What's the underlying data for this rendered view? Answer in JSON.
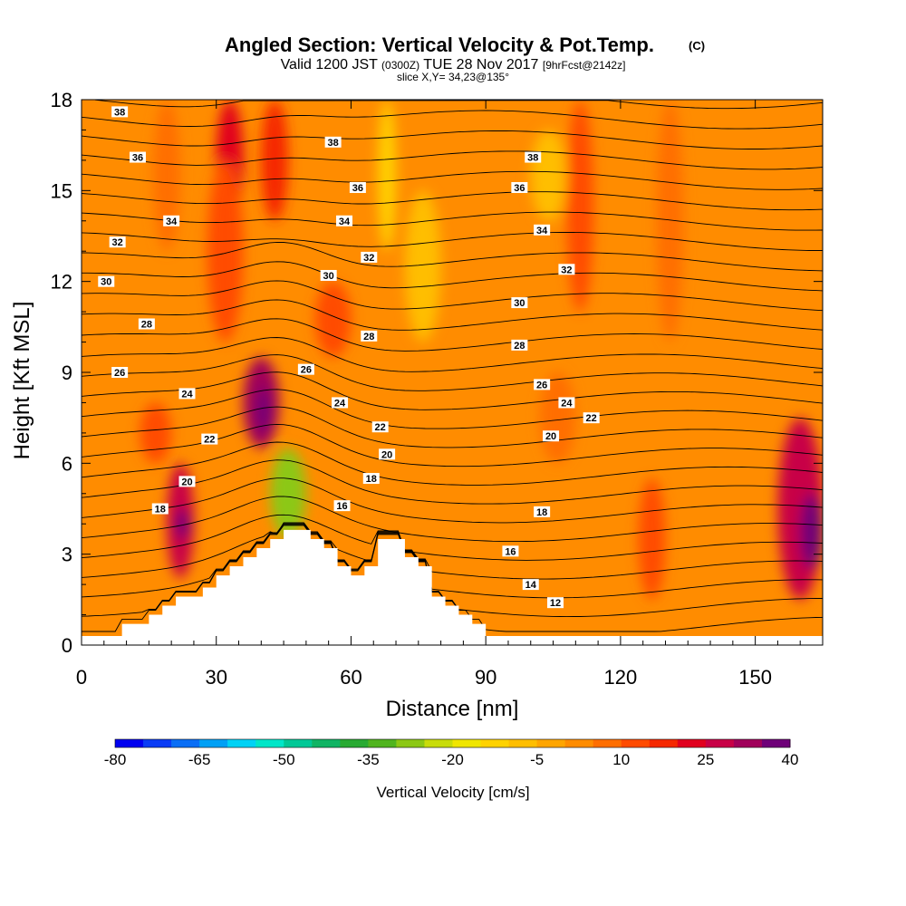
{
  "title": {
    "main": "Angled Section: Vertical Velocity & Pot.Temp.",
    "main_suffix": "(C)",
    "line2_a": "Valid 1200 JST",
    "line2_b": "(0300Z)",
    "line2_c": "TUE 28 Nov 2017",
    "line2_d": "[9hrFcst@2142z]",
    "line3": "slice X,Y= 34,23@135°"
  },
  "chart_data": {
    "type": "heatmap",
    "xlabel": "Distance [nm]",
    "ylabel": "Height [Kft MSL]",
    "xlim": [
      0,
      165
    ],
    "ylim": [
      0,
      18
    ],
    "xticks": [
      0,
      30,
      60,
      90,
      120,
      150
    ],
    "yticks": [
      0,
      3,
      6,
      9,
      12,
      15,
      18
    ],
    "grid": false,
    "colorbar": {
      "label": "Vertical Velocity [cm/s]",
      "boundaries": [
        -80,
        -75,
        -70,
        -65,
        -60,
        -55,
        -50,
        -45,
        -40,
        -35,
        -30,
        -25,
        -20,
        -15,
        -10,
        -5,
        0,
        5,
        10,
        15,
        20,
        25,
        30,
        35,
        40
      ],
      "tick_labels": [
        "-80",
        "-65",
        "-50",
        "-35",
        "-20",
        "-5",
        "10",
        "25",
        "40"
      ],
      "colors": [
        "#0000f0",
        "#0a3cf5",
        "#0a6ef5",
        "#00a0f5",
        "#00d2f5",
        "#00e6c8",
        "#00c896",
        "#10b464",
        "#28aa32",
        "#50b41e",
        "#8cc814",
        "#c8dc0a",
        "#f0e600",
        "#ffd200",
        "#ffbe00",
        "#ffa500",
        "#ff8c00",
        "#ff6e00",
        "#ff4b00",
        "#f52800",
        "#e1001e",
        "#c80046",
        "#a0005a",
        "#6e0078"
      ]
    },
    "background_value_cm_s": 0,
    "cells": [
      {
        "x": [
          30,
          36
        ],
        "y": [
          14,
          18
        ],
        "w": 22
      },
      {
        "x": [
          40,
          46
        ],
        "y": [
          14,
          18
        ],
        "w": 15
      },
      {
        "x": [
          28,
          36
        ],
        "y": [
          10,
          16
        ],
        "w": 10
      },
      {
        "x": [
          16,
          22
        ],
        "y": [
          13,
          18
        ],
        "w": 7
      },
      {
        "x": [
          52,
          60
        ],
        "y": [
          9.5,
          12
        ],
        "w": 12
      },
      {
        "x": [
          36,
          44
        ],
        "y": [
          6.5,
          9.5
        ],
        "w": 32
      },
      {
        "x": [
          39,
          42
        ],
        "y": [
          7,
          8.5
        ],
        "w": 38
      },
      {
        "x": [
          19,
          25
        ],
        "y": [
          2.2,
          6
        ],
        "w": 28
      },
      {
        "x": [
          21,
          24
        ],
        "y": [
          3.5,
          4.5
        ],
        "w": 36
      },
      {
        "x": [
          13,
          20
        ],
        "y": [
          6,
          8
        ],
        "w": 10
      },
      {
        "x": [
          155,
          165
        ],
        "y": [
          1.5,
          7.5
        ],
        "w": 25
      },
      {
        "x": [
          160,
          165
        ],
        "y": [
          2.5,
          5
        ],
        "w": 38
      },
      {
        "x": [
          108,
          114
        ],
        "y": [
          11,
          18
        ],
        "w": 10
      },
      {
        "x": [
          128,
          134
        ],
        "y": [
          10,
          18
        ],
        "w": 8
      },
      {
        "x": [
          102,
          110
        ],
        "y": [
          6,
          9
        ],
        "w": 7
      },
      {
        "x": [
          124,
          130
        ],
        "y": [
          1.5,
          5.5
        ],
        "w": 10
      },
      {
        "x": [
          66,
          70
        ],
        "y": [
          13,
          18
        ],
        "w": -15
      },
      {
        "x": [
          72,
          80
        ],
        "y": [
          10,
          15
        ],
        "w": -7
      },
      {
        "x": [
          42,
          50
        ],
        "y": [
          3.5,
          6.5
        ],
        "w": -30
      },
      {
        "x": [
          100,
          108
        ],
        "y": [
          14,
          17
        ],
        "w": -8
      }
    ],
    "terrain_profile": {
      "x": [
        0,
        9,
        9,
        15,
        15,
        18,
        18,
        21,
        21,
        24,
        24,
        27,
        27,
        30,
        30,
        33,
        33,
        36,
        36,
        39,
        39,
        42,
        42,
        45,
        45,
        51,
        51,
        54,
        54,
        57,
        57,
        60,
        60,
        63,
        63,
        66,
        66,
        72,
        72,
        75,
        75,
        78,
        78,
        81,
        81,
        84,
        84,
        87,
        87,
        90,
        90,
        165
      ],
      "y": [
        0.3,
        0.3,
        0.7,
        0.7,
        1.0,
        1.0,
        1.3,
        1.3,
        1.6,
        1.6,
        1.6,
        1.6,
        1.9,
        1.9,
        2.3,
        2.3,
        2.6,
        2.6,
        2.9,
        2.9,
        3.2,
        3.2,
        3.5,
        3.5,
        3.8,
        3.8,
        3.5,
        3.5,
        3.2,
        3.2,
        2.6,
        2.6,
        2.3,
        2.3,
        2.6,
        2.6,
        3.5,
        3.5,
        2.9,
        2.9,
        2.6,
        2.6,
        1.6,
        1.6,
        1.3,
        1.3,
        1.0,
        1.0,
        0.7,
        0.7,
        0.3,
        0.3
      ]
    },
    "isentropes_C": [
      10,
      11,
      12,
      13,
      14,
      15,
      16,
      17,
      18,
      19,
      20,
      21,
      22,
      23,
      24,
      25,
      26,
      27,
      28,
      29,
      30,
      31,
      32,
      33,
      34,
      35,
      36,
      37,
      38
    ],
    "contour_labels": [
      {
        "text": "38",
        "x": 8.5,
        "y": 17.6
      },
      {
        "text": "36",
        "x": 12.5,
        "y": 16.1
      },
      {
        "text": "34",
        "x": 20,
        "y": 14
      },
      {
        "text": "32",
        "x": 8,
        "y": 13.3
      },
      {
        "text": "30",
        "x": 5.5,
        "y": 12
      },
      {
        "text": "28",
        "x": 14.5,
        "y": 10.6
      },
      {
        "text": "26",
        "x": 8.5,
        "y": 9
      },
      {
        "text": "24",
        "x": 23.5,
        "y": 8.3
      },
      {
        "text": "22",
        "x": 28.5,
        "y": 6.8
      },
      {
        "text": "20",
        "x": 23.5,
        "y": 5.4
      },
      {
        "text": "18",
        "x": 17.5,
        "y": 4.5
      },
      {
        "text": "38",
        "x": 56,
        "y": 16.6
      },
      {
        "text": "36",
        "x": 61.5,
        "y": 15.1
      },
      {
        "text": "34",
        "x": 58.5,
        "y": 14
      },
      {
        "text": "32",
        "x": 64,
        "y": 12.8
      },
      {
        "text": "30",
        "x": 55,
        "y": 12.2
      },
      {
        "text": "28",
        "x": 64,
        "y": 10.2
      },
      {
        "text": "26",
        "x": 50,
        "y": 9.1
      },
      {
        "text": "24",
        "x": 57.5,
        "y": 8
      },
      {
        "text": "22",
        "x": 66.5,
        "y": 7.2
      },
      {
        "text": "20",
        "x": 68,
        "y": 6.3
      },
      {
        "text": "18",
        "x": 64.5,
        "y": 5.5
      },
      {
        "text": "16",
        "x": 58,
        "y": 4.6
      },
      {
        "text": "38",
        "x": 100.5,
        "y": 16.1
      },
      {
        "text": "36",
        "x": 97.5,
        "y": 15.1
      },
      {
        "text": "34",
        "x": 102.5,
        "y": 13.7
      },
      {
        "text": "32",
        "x": 108,
        "y": 12.4
      },
      {
        "text": "30",
        "x": 97.5,
        "y": 11.3
      },
      {
        "text": "28",
        "x": 97.5,
        "y": 9.9
      },
      {
        "text": "26",
        "x": 102.5,
        "y": 8.6
      },
      {
        "text": "24",
        "x": 108,
        "y": 8
      },
      {
        "text": "22",
        "x": 113.5,
        "y": 7.5
      },
      {
        "text": "20",
        "x": 104.5,
        "y": 6.9
      },
      {
        "text": "18",
        "x": 102.5,
        "y": 4.4
      },
      {
        "text": "16",
        "x": 95.5,
        "y": 3.1
      },
      {
        "text": "14",
        "x": 100,
        "y": 2
      },
      {
        "text": "12",
        "x": 105.5,
        "y": 1.4
      }
    ]
  }
}
